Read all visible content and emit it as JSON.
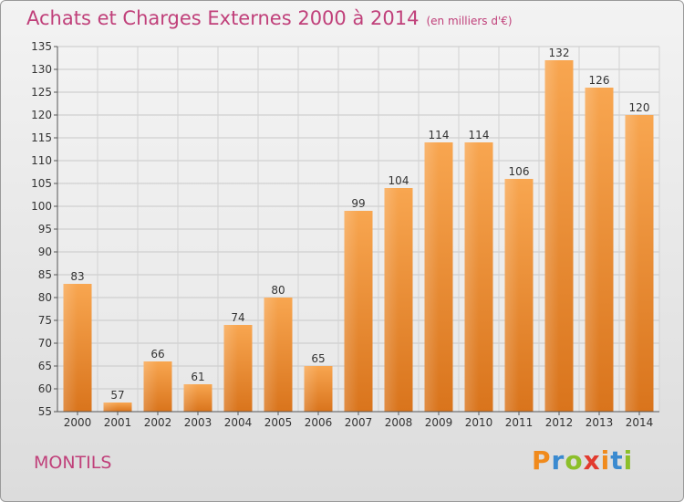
{
  "title": "Achats et Charges Externes 2000 à 2014",
  "unit": "(en milliers d'€)",
  "town": "MONTILS",
  "logo": {
    "letters": [
      "P",
      "r",
      "o",
      "x",
      "i",
      "t",
      "i"
    ],
    "colors": [
      "#f08a1c",
      "#3a8ad0",
      "#8cbf2a",
      "#e23a2e",
      "#f08a1c",
      "#3a8ad0",
      "#8cbf2a"
    ]
  },
  "chart_data": {
    "type": "bar",
    "categories": [
      "2000",
      "2001",
      "2002",
      "2003",
      "2004",
      "2005",
      "2006",
      "2007",
      "2008",
      "2009",
      "2010",
      "2011",
      "2012",
      "2013",
      "2014"
    ],
    "values": [
      83,
      57,
      66,
      61,
      74,
      80,
      65,
      99,
      104,
      114,
      114,
      106,
      132,
      126,
      120
    ],
    "ylim": [
      55,
      135
    ],
    "yticks": [
      55,
      60,
      65,
      70,
      75,
      80,
      85,
      90,
      95,
      100,
      105,
      110,
      115,
      120,
      125,
      130,
      135
    ],
    "grid": true,
    "bar_color": "#f0932f"
  }
}
